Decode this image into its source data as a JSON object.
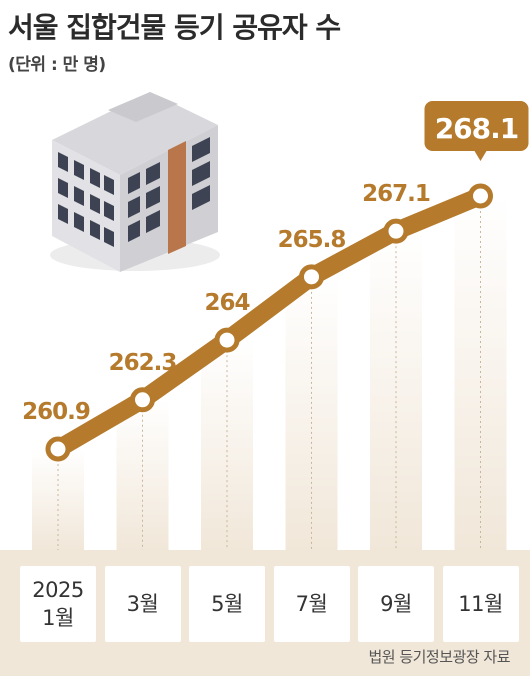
{
  "header": {
    "title": "서울 집합건물 등기 공유자 수",
    "unit": "(단위 : 만 명)"
  },
  "colors": {
    "line": "#b57a2c",
    "marker_fill": "#ffffff",
    "label": "#b57a2c",
    "callout_bg": "#b57a2c",
    "callout_text": "#ffffff",
    "band": "#f1e7d9"
  },
  "illustration": "apartment-building-illustration",
  "chart_data": {
    "type": "line",
    "title": "서울 집합건물 등기 공유자 수",
    "unit": "(단위 : 만 명)",
    "categories": [
      "2025\n1월",
      "3월",
      "5월",
      "7월",
      "9월",
      "11월"
    ],
    "values": [
      260.9,
      262.3,
      264,
      265.8,
      267.1,
      268.1
    ],
    "value_labels": [
      "260.9",
      "262.3",
      "264",
      "265.8",
      "267.1",
      "268.1"
    ],
    "highlight_index": 5,
    "grid": false,
    "legend": "none"
  },
  "source": "법원 등기정보광장 자료"
}
